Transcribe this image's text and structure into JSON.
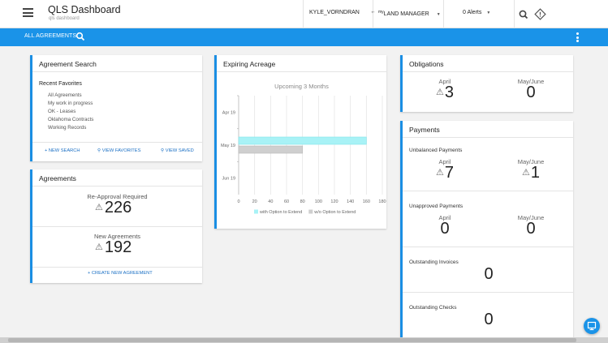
{
  "header": {
    "title": "QLS Dashboard",
    "subtitle": "qls dashboard",
    "user": "KYLE_VORNDRAN",
    "role_prefix": "my",
    "role": "LAND MANAGER",
    "alerts": "0 Alerts",
    "icons": [
      "menu-icon",
      "caret-down-icon",
      "search-icon",
      "diamond-warning-icon"
    ]
  },
  "toolbar": {
    "label": "ALL AGREEMENTS",
    "icons": [
      "search-icon",
      "more-vertical-icon"
    ]
  },
  "agreement_search": {
    "title": "Agreement Search",
    "favorites_heading": "Recent Favorites",
    "favorites": [
      "All Agreements",
      "My work in progress",
      "OK - Leases",
      "Oklahoma Contracts",
      "Working Records"
    ],
    "links": {
      "new_search": "NEW SEARCH",
      "view_favorites": "VIEW FAVORITES",
      "view_saved": "VIEW SAVED"
    }
  },
  "agreements": {
    "title": "Agreements",
    "reapproval_label": "Re-Approval Required",
    "reapproval_value": "226",
    "new_label": "New Agreements",
    "new_value": "192",
    "create_link": "CREATE NEW AGREEMENT"
  },
  "expiring": {
    "title": "Expiring Acreage"
  },
  "chart_data": {
    "type": "bar",
    "orientation": "horizontal",
    "title": "Upcoming 3 Months",
    "categories": [
      "Apr 19",
      "May 19",
      "Jun 19"
    ],
    "series": [
      {
        "name": "with Option to Extend",
        "values": [
          0,
          160,
          0
        ],
        "color": "#a8f2f6"
      },
      {
        "name": "w/o Option to Extend",
        "values": [
          0,
          80,
          0
        ],
        "color": "#cfcfcf"
      }
    ],
    "xlim": [
      0,
      180
    ],
    "xticks": [
      "0",
      "20",
      "40",
      "60",
      "80",
      "100",
      "120",
      "140",
      "160",
      "180"
    ],
    "grid": true,
    "legend": "bottom"
  },
  "obligations": {
    "title": "Obligations",
    "col1_label": "April",
    "col1_value": "3",
    "col2_label": "May/June",
    "col2_value": "0"
  },
  "payments": {
    "title": "Payments",
    "unbalanced_label": "Unbalanced Payments",
    "unbalanced_april_label": "April",
    "unbalanced_april": "7",
    "unbalanced_mayjune_label": "May/June",
    "unbalanced_mayjune": "1",
    "unapproved_label": "Unapproved Payments",
    "unapproved_april_label": "April",
    "unapproved_april": "0",
    "unapproved_mayjune_label": "May/June",
    "unapproved_mayjune": "0",
    "invoices_label": "Outstanding Invoices",
    "invoices_value": "0",
    "checks_label": "Outstanding Checks",
    "checks_value": "0"
  },
  "colors": {
    "accent": "#1a93e8",
    "card_border": "#1a8ee3",
    "link": "#1a6fc4"
  }
}
